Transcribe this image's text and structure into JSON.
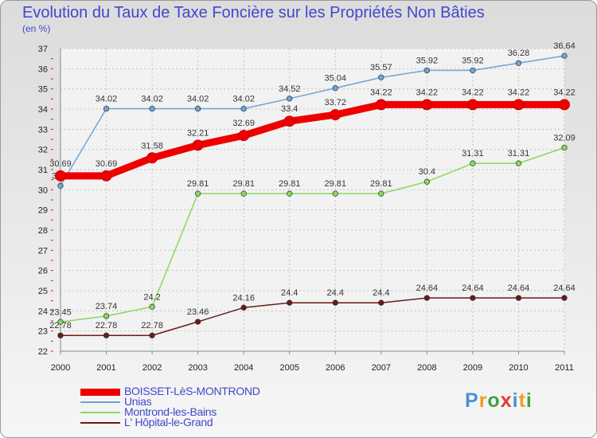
{
  "title": "Evolution du Taux de Taxe Foncière sur les Propriétés Non Bâties",
  "subtitle": "(en %)",
  "chart_data": {
    "type": "line",
    "title": "Evolution du Taux de Taxe Foncière sur les Propriétés Non Bâties",
    "ylabel": "(en %)",
    "xlabel": "",
    "ylim": [
      22,
      37
    ],
    "yticks": [
      22,
      23,
      24,
      25,
      26,
      27,
      28,
      29,
      30,
      31,
      32,
      33,
      34,
      35,
      36,
      37
    ],
    "categories": [
      "2000",
      "2001",
      "2002",
      "2003",
      "2004",
      "2005",
      "2006",
      "2007",
      "2008",
      "2009",
      "2010",
      "2011"
    ],
    "grid": true,
    "legend_position": "bottom-left",
    "series": [
      {
        "name": "L' Hôpital-le-Grand",
        "color": "#6b1a1a",
        "values": [
          22.78,
          22.78,
          22.78,
          23.46,
          24.16,
          24.4,
          24.4,
          24.4,
          24.64,
          24.64,
          24.64,
          24.64
        ],
        "labels": [
          "22.78",
          "22.78",
          "22.78",
          "23.46",
          "24.16",
          "24.4",
          "24.4",
          "24.4",
          "24.64",
          "24.64",
          "24.64",
          "24.64"
        ]
      },
      {
        "name": "Montrond-les-Bains",
        "color": "#88d85e",
        "values": [
          23.45,
          23.74,
          24.2,
          29.81,
          29.81,
          29.81,
          29.81,
          29.81,
          30.4,
          31.31,
          31.31,
          32.09
        ],
        "labels": [
          "23.45",
          "23.74",
          "24.2",
          "29.81",
          "29.81",
          "29.81",
          "29.81",
          "29.81",
          "30.4",
          "31.31",
          "31.31",
          "32.09"
        ]
      },
      {
        "name": "Unias",
        "color": "#6fa4d8",
        "values": [
          30.2,
          34.02,
          34.02,
          34.02,
          34.02,
          34.52,
          35.04,
          35.57,
          35.92,
          35.92,
          36.28,
          36.64
        ],
        "labels": [
          "30.2",
          "34.02",
          "34.02",
          "34.02",
          "34.02",
          "34.52",
          "35.04",
          "35.57",
          "35.92",
          "35.92",
          "36.28",
          "36.64"
        ]
      },
      {
        "name": "BOISSET-LèS-MONTROND",
        "color": "#ee0000",
        "values": [
          30.69,
          30.69,
          31.58,
          32.21,
          32.69,
          33.4,
          33.72,
          34.22,
          34.22,
          34.22,
          34.22,
          34.22
        ],
        "labels": [
          "30.69",
          "30.69",
          "31.58",
          "32.21",
          "32.69",
          "33.4",
          "33.72",
          "34.22",
          "34.22",
          "34.22",
          "34.22",
          "34.22"
        ]
      }
    ]
  },
  "legend": {
    "items": [
      {
        "name": "BOISSET-LèS-MONTROND",
        "color": "#ee0000"
      },
      {
        "name": "Unias",
        "color": "#6fa4d8"
      },
      {
        "name": "Montrond-les-Bains",
        "color": "#88d85e"
      },
      {
        "name": "L' Hôpital-le-Grand",
        "color": "#6b1a1a"
      }
    ]
  },
  "logo": {
    "letters": [
      "P",
      "r",
      "o",
      "x",
      "i",
      "t",
      "i"
    ],
    "colors": [
      "#4a90d9",
      "#e8a020",
      "#43a047",
      "#e53935",
      "#4a90d9",
      "#e8a020",
      "#43a047"
    ]
  }
}
